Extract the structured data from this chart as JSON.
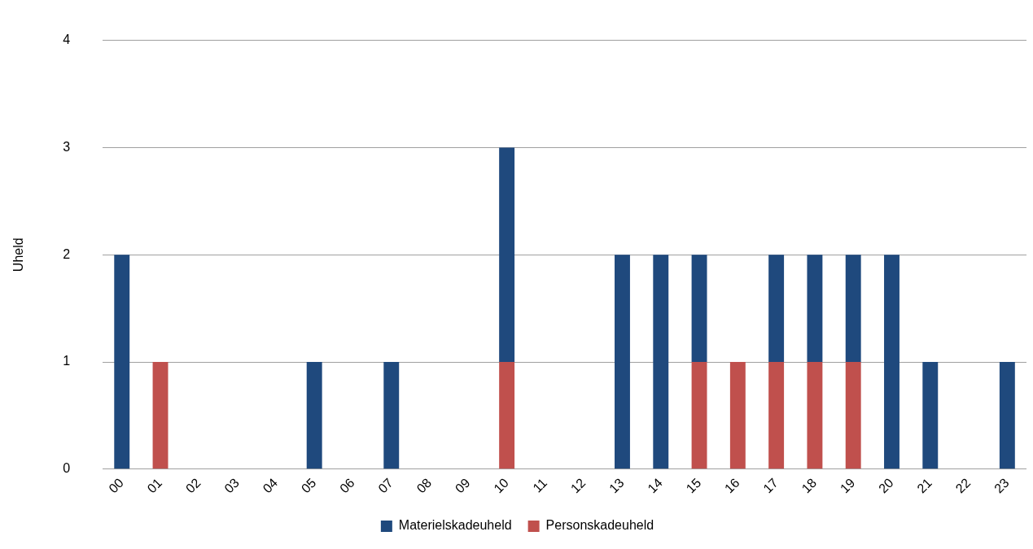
{
  "chart_data": {
    "type": "bar",
    "stacked": true,
    "ylabel": "Uheld",
    "categories": [
      "00",
      "01",
      "02",
      "03",
      "04",
      "05",
      "06",
      "07",
      "08",
      "09",
      "10",
      "11",
      "12",
      "13",
      "14",
      "15",
      "16",
      "17",
      "18",
      "19",
      "20",
      "21",
      "22",
      "23"
    ],
    "series": [
      {
        "name": "Personskadeuheld",
        "color": "#c0504d",
        "values": [
          0,
          1,
          0,
          0,
          0,
          0,
          0,
          0,
          0,
          0,
          1,
          0,
          0,
          0,
          0,
          1,
          1,
          1,
          1,
          1,
          0,
          0,
          0,
          0
        ]
      },
      {
        "name": "Materielskadeuheld",
        "color": "#1f497d",
        "values": [
          2,
          0,
          0,
          0,
          0,
          1,
          0,
          1,
          0,
          0,
          2,
          0,
          0,
          2,
          2,
          1,
          0,
          1,
          1,
          1,
          2,
          1,
          0,
          1
        ]
      }
    ],
    "ylim": [
      0,
      4
    ],
    "yticks": [
      0,
      1,
      2,
      3,
      4
    ],
    "grid": "y",
    "legend": "bottom"
  }
}
